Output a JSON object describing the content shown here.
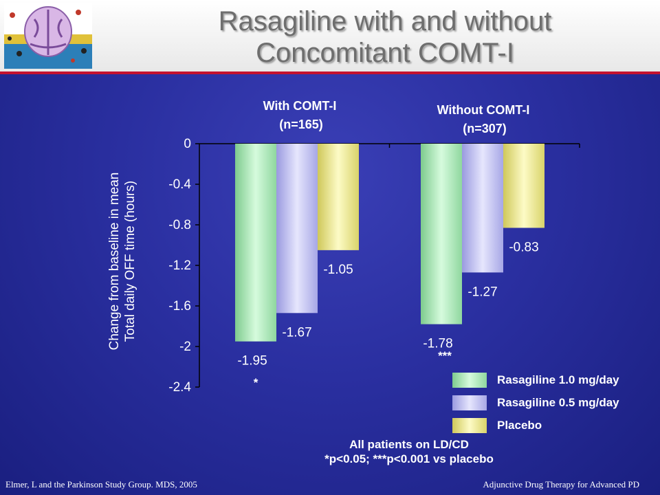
{
  "slide": {
    "title_line1": "Rasagiline with and without",
    "title_line2": "Concomitant COMT-I",
    "footer_left": "Elmer, L and the Parkinson Study Group. MDS, 2005",
    "footer_right": "Adjunctive Drug Therapy for Advanced PD",
    "note_line1": "All patients on LD/CD",
    "note_line2": "*p<0.05; ***p<0.001 vs placebo",
    "ylabel_line1": "Change from baseline in mean",
    "ylabel_line2": "Total daily OFF time (hours)",
    "group_labels": [
      {
        "line1": "With COMT-I",
        "line2": "(n=165)"
      },
      {
        "line1": "Without COMT-I",
        "line2": "(n=307)"
      }
    ],
    "significance": [
      "*",
      "***"
    ]
  },
  "colors": {
    "header_accent": "#c4122f",
    "series": [
      "#b9f0c3",
      "#c8c8f6",
      "#f6f29a"
    ]
  },
  "chart_data": {
    "type": "bar",
    "categories": [
      "With COMT-I",
      "Without COMT-I"
    ],
    "series": [
      {
        "name": "Rasagiline 1.0 mg/day",
        "values": [
          -1.95,
          -1.78
        ],
        "labels": [
          "-1.95",
          "-1.78"
        ]
      },
      {
        "name": "Rasagiline 0.5 mg/day",
        "values": [
          -1.67,
          -1.27
        ],
        "labels": [
          "-1.67",
          "-1.27"
        ]
      },
      {
        "name": "Placebo",
        "values": [
          -1.05,
          -0.83
        ],
        "labels": [
          "-1.05",
          "-0.83"
        ]
      }
    ],
    "yticks": [
      "0",
      "-0.4",
      "-0.8",
      "-1.2",
      "-1.6",
      "-2",
      "-2.4"
    ],
    "ylim": [
      -2.4,
      0
    ],
    "legend_position": "bottom-right"
  }
}
